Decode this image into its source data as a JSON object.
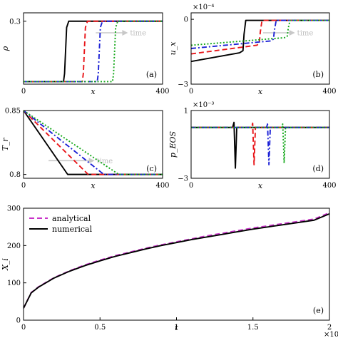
{
  "chart_data": [
    {
      "panel": "(a)",
      "type": "line",
      "ylabel": "ρ",
      "xlabel": "x",
      "xlim": [
        0,
        400
      ],
      "ylim": [
        0,
        0.34
      ],
      "xticks": [
        "0",
        "400"
      ],
      "yticks": [
        "0.3"
      ],
      "time_arrow": "time",
      "series": [
        {
          "style": "solid",
          "color": "#000000",
          "x": [
            0,
            115,
            118,
            124,
            130,
            400
          ],
          "y": [
            0.012,
            0.012,
            0.05,
            0.27,
            0.3,
            0.3
          ]
        },
        {
          "style": "dashed",
          "color": "#e8171b",
          "x": [
            0,
            169,
            172,
            178,
            184,
            400
          ],
          "y": [
            0.012,
            0.012,
            0.05,
            0.27,
            0.3,
            0.3
          ]
        },
        {
          "style": "dashdot",
          "color": "#1c21d6",
          "x": [
            0,
            212,
            215,
            221,
            227,
            400
          ],
          "y": [
            0.012,
            0.012,
            0.05,
            0.27,
            0.3,
            0.3
          ]
        },
        {
          "style": "dotted",
          "color": "#15a81a",
          "x": [
            0,
            256,
            259,
            265,
            271,
            400
          ],
          "y": [
            0.012,
            0.012,
            0.05,
            0.27,
            0.3,
            0.3
          ]
        }
      ]
    },
    {
      "panel": "(b)",
      "type": "line",
      "ylabel": "u_x",
      "xlabel": "x",
      "xlim": [
        0,
        400
      ],
      "ylim": [
        -3,
        0.3
      ],
      "xticks": [
        "0",
        "400"
      ],
      "yticks": [
        "0",
        "−3"
      ],
      "y_multiplier": "×10⁻⁴",
      "time_arrow": "time",
      "series": [
        {
          "style": "solid",
          "color": "#000000",
          "x": [
            0,
            140,
            150,
            153,
            158,
            400
          ],
          "y": [
            -1.95,
            -1.55,
            -1.45,
            -0.7,
            -0.05,
            -0.05
          ]
        },
        {
          "style": "dashed",
          "color": "#e8171b",
          "x": [
            0,
            190,
            197,
            200,
            205,
            400
          ],
          "y": [
            -1.6,
            -1.2,
            -1.12,
            -0.6,
            -0.05,
            -0.05
          ]
        },
        {
          "style": "dashdot",
          "color": "#1c21d6",
          "x": [
            0,
            230,
            238,
            241,
            246,
            400
          ],
          "y": [
            -1.35,
            -1.0,
            -0.92,
            -0.5,
            -0.05,
            -0.05
          ]
        },
        {
          "style": "dotted",
          "color": "#15a81a",
          "x": [
            0,
            270,
            278,
            281,
            286,
            400
          ],
          "y": [
            -1.2,
            -0.85,
            -0.78,
            -0.4,
            -0.05,
            -0.05
          ]
        }
      ]
    },
    {
      "panel": "(c)",
      "type": "line",
      "ylabel": "T_r",
      "xlabel": "x",
      "xlim": [
        0,
        400
      ],
      "ylim": [
        0.797,
        0.85
      ],
      "xticks": [
        "0",
        "400"
      ],
      "yticks": [
        "0.85",
        "0.8"
      ],
      "time_arrow": "time",
      "series": [
        {
          "style": "solid",
          "color": "#000000",
          "x": [
            0,
            127,
            400
          ],
          "y": [
            0.85,
            0.8,
            0.8
          ]
        },
        {
          "style": "dashed",
          "color": "#e8171b",
          "x": [
            0,
            186,
            400
          ],
          "y": [
            0.85,
            0.8,
            0.8
          ]
        },
        {
          "style": "dashdot",
          "color": "#1c21d6",
          "x": [
            0,
            231,
            400
          ],
          "y": [
            0.85,
            0.8,
            0.8
          ]
        },
        {
          "style": "dotted",
          "color": "#15a81a",
          "x": [
            0,
            274,
            400
          ],
          "y": [
            0.85,
            0.8,
            0.8
          ]
        }
      ]
    },
    {
      "panel": "(d)",
      "type": "line",
      "ylabel": "p_EOS",
      "xlabel": "x",
      "xlim": [
        0,
        400
      ],
      "ylim": [
        -3,
        1
      ],
      "xticks": [
        "0",
        "400"
      ],
      "yticks": [
        "1",
        "−3"
      ],
      "y_multiplier": "×10⁻³",
      "series": [
        {
          "style": "solid",
          "color": "#000000",
          "x": [
            0,
            120,
            124,
            128,
            132,
            400
          ],
          "y": [
            0,
            0,
            0.3,
            -2.4,
            0,
            0
          ]
        },
        {
          "style": "dashed",
          "color": "#e8171b",
          "x": [
            0,
            175,
            178,
            182,
            186,
            400
          ],
          "y": [
            0,
            0,
            0.25,
            -2.2,
            0,
            0
          ]
        },
        {
          "style": "dashdot",
          "color": "#1c21d6",
          "x": [
            0,
            218,
            221,
            225,
            229,
            400
          ],
          "y": [
            0,
            0,
            0.2,
            -2.2,
            0,
            0
          ]
        },
        {
          "style": "dotted",
          "color": "#15a81a",
          "x": [
            0,
            262,
            265,
            269,
            273,
            400
          ],
          "y": [
            0,
            0,
            0.2,
            -2.1,
            0,
            0
          ]
        }
      ]
    },
    {
      "panel": "(e)",
      "type": "line",
      "ylabel": "X_i",
      "xlabel": "t",
      "xlim": [
        0,
        2
      ],
      "ylim": [
        0,
        300
      ],
      "xticks": [
        "0",
        "0.5",
        "1",
        "1.5",
        "2"
      ],
      "yticks": [
        "0",
        "100",
        "200",
        "300"
      ],
      "x_multiplier": "×10⁷",
      "legend": "top-left",
      "series": [
        {
          "name": "analytical",
          "style": "dashed",
          "color": "#c832c8",
          "x": [
            0,
            0.05,
            0.1,
            0.2,
            0.3,
            0.4,
            0.5,
            0.6,
            0.7,
            0.8,
            0.9,
            1.0,
            1.1,
            1.2,
            1.3,
            1.4,
            1.5,
            1.6,
            1.7,
            1.8,
            1.9,
            2.0
          ],
          "y": [
            32,
            74,
            90,
            114,
            132,
            148,
            161,
            173,
            183,
            193,
            202,
            210,
            218,
            226,
            233,
            240,
            247,
            253,
            259,
            265,
            271,
            288
          ]
        },
        {
          "name": "numerical",
          "style": "solid",
          "color": "#000000",
          "x": [
            0,
            0.05,
            0.1,
            0.2,
            0.3,
            0.4,
            0.5,
            0.6,
            0.7,
            0.8,
            0.9,
            1.0,
            1.1,
            1.2,
            1.3,
            1.4,
            1.5,
            1.6,
            1.7,
            1.8,
            1.9,
            2.0
          ],
          "y": [
            32,
            73,
            89,
            113,
            131,
            146,
            159,
            171,
            181,
            191,
            200,
            208,
            216,
            223,
            230,
            237,
            244,
            250,
            256,
            262,
            268,
            285
          ]
        }
      ]
    }
  ]
}
